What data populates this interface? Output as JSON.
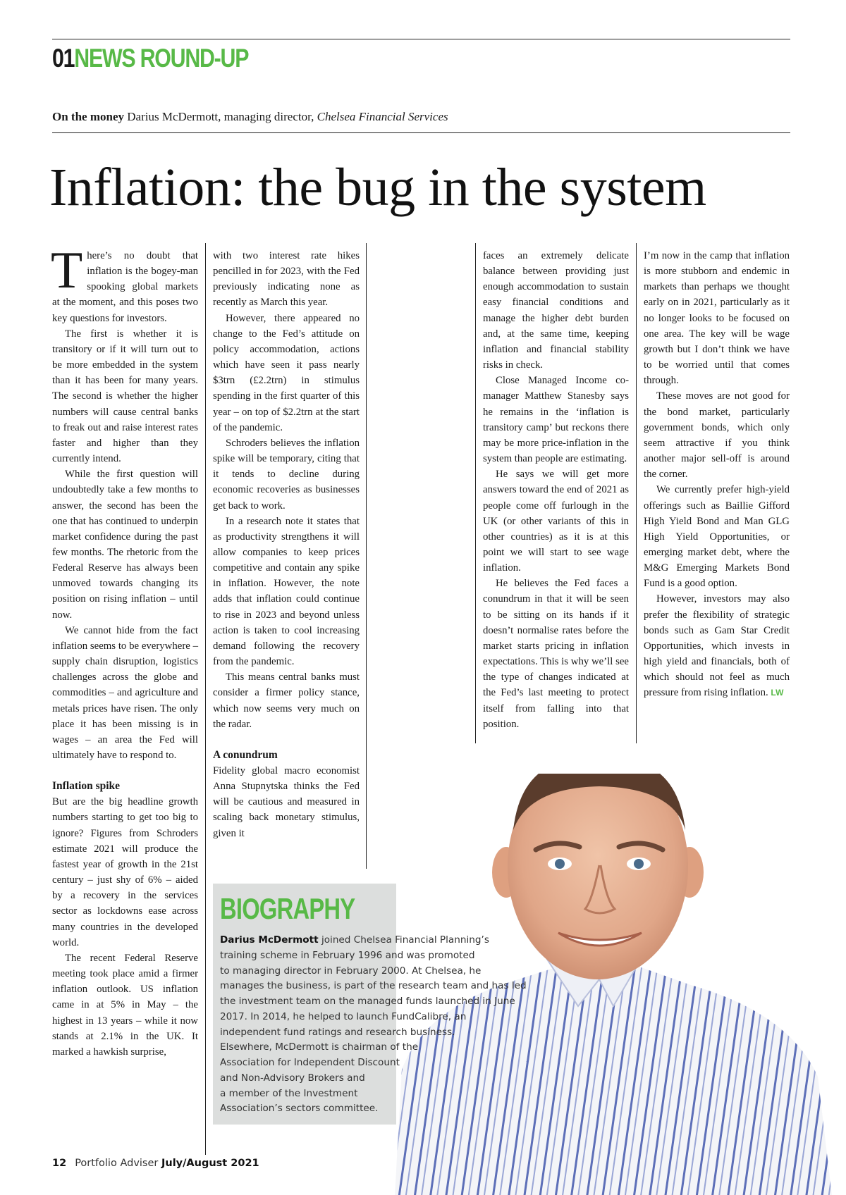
{
  "section": {
    "number": "01",
    "name": "NEWS ROUND-UP"
  },
  "byline": {
    "label": "On the money",
    "author": "Darius McDermott, managing director, ",
    "company": "Chelsea Financial Services"
  },
  "headline": "Inflation: the bug in the system",
  "col1": {
    "dropcap": "T",
    "p1": "here’s no doubt that inflation is the bogey-man spooking global markets at the moment, and this poses two key questions for investors.",
    "p2": "The first is whether it is transitory or if it will turn out to be more embedded in the system than it has been for many years. The second is whether the higher numbers will cause central banks to freak out and raise interest rates faster and higher than they currently intend.",
    "p3": "While the first question will undoubtedly take a few months to answer, the second has been the one that has continued to underpin market confidence during the past few months. The rhetoric from the Federal Reserve has always been unmoved towards changing its position on rising inflation – until now.",
    "p4": "We cannot hide from the fact inflation seems to be everywhere – supply chain disruption, logistics challenges across the globe and commodities – and agriculture and metals prices have risen. The only place it has been missing is in wages – an area the Fed will ultimately have to respond to.",
    "h1": "Inflation spike",
    "p5": "But are the big headline growth numbers starting to get too big to ignore? Figures from Schroders estimate 2021 will produce the fastest year of growth in the 21st century – just shy of 6% – aided by a recovery in the services sector as lockdowns ease across many countries in the developed world.",
    "p6": "The recent Federal Reserve meeting took place amid a firmer inflation outlook. US inflation came in at 5% in May – the highest in 13 years – while it now stands at 2.1% in the UK. It marked a hawkish surprise,"
  },
  "col2": {
    "p1": "with two interest rate hikes pencilled in for 2023, with the Fed previously indicating none as recently as March this year.",
    "p2": "However, there appeared no change to the Fed’s attitude on policy accommodation, actions which have seen it pass nearly $3trn (£2.2trn) in stimulus spending in the first quarter of this year – on top of $2.2trn at the start of the pandemic.",
    "p3": "Schroders believes the inflation spike will be temporary, citing that it tends to decline during economic recoveries as businesses get back to work.",
    "p4": "In a research note it states that as productivity strengthens it will allow companies to keep prices competitive and contain any spike in inflation. However, the note adds that inflation could continue to rise in 2023 and beyond unless action is taken to cool increasing demand following the recovery from the pandemic.",
    "p5": "This means central banks must consider a firmer policy stance, which now seems very much on the radar.",
    "h1": "A conundrum",
    "p6": "Fidelity global macro economist Anna Stupnytska thinks the Fed will be cautious and measured in scaling back monetary stimulus, given it"
  },
  "col3": {
    "p1": "faces an extremely delicate balance between providing just enough accommodation to sustain easy financial conditions and manage the higher debt burden and, at the same time, keeping inflation and financial stability risks in check.",
    "p2": "Close Managed Income co-manager Matthew Stanesby says he remains in the ‘inflation is transitory camp’ but reckons there may be more price-inflation in the system than people are estimating.",
    "p3": "He says we will get more answers toward the end of 2021 as people come off furlough in the UK (or other variants of this in other countries) as it is at this point we will start to see wage inflation.",
    "p4": "He believes the Fed faces a conundrum in that it will be seen to be sitting on its hands if it doesn’t normalise rates before the market starts pricing in inflation expectations. This is why we’ll see the type of changes indicated at the Fed’s last meeting to protect itself from falling into that position."
  },
  "col4": {
    "p1": "I’m now in the camp that inflation is more stubborn and endemic in markets than perhaps we thought early on in 2021, particularly as it no longer looks to be focused on one area. The key will be wage growth but I don’t think we have to be worried until that comes through.",
    "p2": "These moves are not good for the bond market, particularly government bonds, which only seem attractive if you think another major sell-off is around the corner.",
    "p3": "We currently prefer high-yield offerings such as Baillie Gifford High Yield Bond and Man GLG High Yield Opportunities, or emerging market debt, where the M&G Emerging Markets Bond Fund is a good option.",
    "p4": "However, investors may also prefer the flexibility of strategic bonds such as Gam Star Credit Opportunities, which invests in high yield and financials, both of which should not feel as much pressure from rising inflation.",
    "end_tag": "LW"
  },
  "bio": {
    "title": "BIOGRAPHY",
    "name": "Darius McDermott",
    "lines": [
      " joined Chelsea Financial Planning’s",
      "training scheme in February 1996 and was promoted",
      "to managing director in February 2000. At Chelsea, he",
      "manages the business, is part of the research team and has led",
      "the investment team on the managed funds launched in June",
      "2017. In 2014, he helped to launch FundCalibre, an",
      "independent fund ratings and research business.",
      "Elsewhere, McDermott is chairman of the",
      "Association for Independent Discount",
      "and Non-Advisory Brokers and",
      "a member of the Investment",
      "Association’s sectors committee."
    ]
  },
  "footer": {
    "page": "12",
    "publication": "Portfolio Adviser ",
    "issue": "July/August 2021"
  },
  "colors": {
    "accent": "#58b947",
    "bio_bg": "#dcdedd"
  }
}
